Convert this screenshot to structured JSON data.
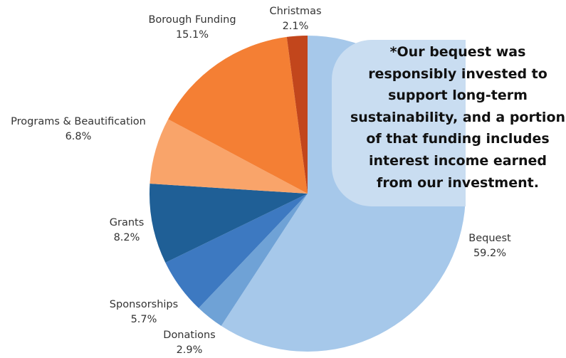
{
  "chart_data": {
    "type": "pie",
    "slices": [
      {
        "label": "Bequest",
        "value": 59.2,
        "display": "59.2%",
        "color": "#a6c8ea"
      },
      {
        "label": "Donations",
        "value": 2.9,
        "display": "2.9%",
        "color": "#6fa2d6"
      },
      {
        "label": "Sponsorships",
        "value": 5.7,
        "display": "5.7%",
        "color": "#3d79c1"
      },
      {
        "label": "Grants",
        "value": 8.2,
        "display": "8.2%",
        "color": "#1f5f96"
      },
      {
        "label": "Programs & Beautification",
        "value": 6.8,
        "display": "6.8%",
        "color": "#f9a46a"
      },
      {
        "label": "Borough Funding",
        "value": 15.1,
        "display": "15.1%",
        "color": "#f47f34"
      },
      {
        "label": "Christmas",
        "value": 2.1,
        "display": "2.1%",
        "color": "#c2461c"
      }
    ],
    "annotation": "*Our bequest was\nresponsibly invested to\nsupport long-term\nsustainability, and a portion\nof that funding includes\ninterest income earned\nfrom our investment."
  }
}
